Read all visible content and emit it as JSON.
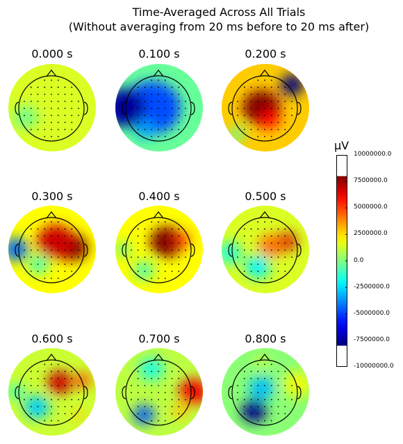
{
  "figure": {
    "title_line1": "Time-Averaged Across All Trials",
    "title_line2": "(Without averaging from 20 ms before to 20 ms after)"
  },
  "chart_data": {
    "type": "heatmap",
    "description_kind": "EEG scalp topomaps",
    "colormap": "jet",
    "vlim": [
      -8000000.0,
      8000000.0
    ],
    "panels": [
      {
        "time": "0.000 s",
        "hot": [],
        "cold": [
          [
            0.25,
            -0.7,
            0.3,
            0.2
          ]
        ],
        "base": 0.18
      },
      {
        "time": "0.100 s",
        "hot": [],
        "cold": [
          [
            0.0,
            -0.2,
            0.7,
            0.55
          ],
          [
            0.0,
            -0.9,
            0.5,
            0.9
          ],
          [
            0.55,
            -0.35,
            0.25,
            0.4
          ]
        ],
        "base": -0.05
      },
      {
        "time": "0.200 s",
        "hot": [
          [
            0.0,
            -0.1,
            0.45,
            0.95
          ],
          [
            0.3,
            0.1,
            0.25,
            0.4
          ]
        ],
        "cold": [
          [
            -0.6,
            0.7,
            0.28,
            1.5
          ],
          [
            0.7,
            -0.75,
            0.2,
            0.4
          ]
        ],
        "base": 0.35
      },
      {
        "time": "0.300 s",
        "hot": [
          [
            -0.05,
            0.55,
            0.35,
            1.0
          ],
          [
            -0.2,
            0.1,
            0.45,
            0.6
          ]
        ],
        "cold": [
          [
            0.0,
            -0.95,
            0.3,
            0.8
          ],
          [
            0.4,
            -0.35,
            0.25,
            0.35
          ]
        ],
        "base": 0.25
      },
      {
        "time": "0.400 s",
        "hot": [
          [
            -0.2,
            0.2,
            0.4,
            1.0
          ],
          [
            -0.25,
            0.6,
            0.2,
            0.4
          ]
        ],
        "cold": [
          [
            0.55,
            -0.4,
            0.25,
            0.35
          ],
          [
            0.0,
            -0.95,
            0.2,
            0.3
          ]
        ],
        "base": 0.25
      },
      {
        "time": "0.500 s",
        "hot": [
          [
            -0.2,
            0.55,
            0.25,
            0.65
          ],
          [
            -0.1,
            0.15,
            0.3,
            0.35
          ]
        ],
        "cold": [
          [
            0.45,
            -0.2,
            0.3,
            0.45
          ],
          [
            0.1,
            -0.95,
            0.3,
            0.35
          ]
        ],
        "base": 0.18
      },
      {
        "time": "0.600 s",
        "hot": [
          [
            -0.25,
            0.2,
            0.3,
            0.7
          ],
          [
            -0.3,
            0.8,
            0.2,
            0.45
          ],
          [
            0.6,
            0.7,
            0.15,
            0.2
          ]
        ],
        "cold": [
          [
            0.4,
            -0.4,
            0.3,
            0.5
          ],
          [
            0.0,
            -0.95,
            0.2,
            0.3
          ]
        ],
        "base": 0.15
      },
      {
        "time": "0.700 s",
        "hot": [
          [
            0.0,
            0.9,
            0.35,
            0.65
          ],
          [
            0.5,
            0.55,
            0.2,
            0.25
          ]
        ],
        "cold": [
          [
            0.6,
            -0.4,
            0.25,
            0.7
          ],
          [
            -0.6,
            -0.2,
            0.3,
            0.3
          ]
        ],
        "base": 0.12
      },
      {
        "time": "0.800 s",
        "hot": [
          [
            -0.2,
            0.85,
            0.35,
            0.2
          ],
          [
            -0.8,
            -0.1,
            0.15,
            0.15
          ]
        ],
        "cold": [
          [
            0.5,
            -0.3,
            0.3,
            1.0
          ],
          [
            -0.1,
            -0.1,
            0.3,
            0.4
          ]
        ],
        "base": 0.02
      }
    ]
  },
  "colorbar": {
    "unit_label": "µV",
    "range": [
      -10000000.0,
      10000000.0
    ],
    "ticks": [
      "10000000.0",
      "7500000.0",
      "5000000.0",
      "2500000.0",
      "0.0",
      "-2500000.0",
      "-5000000.0",
      "-7500000.0",
      "-10000000.0"
    ]
  }
}
